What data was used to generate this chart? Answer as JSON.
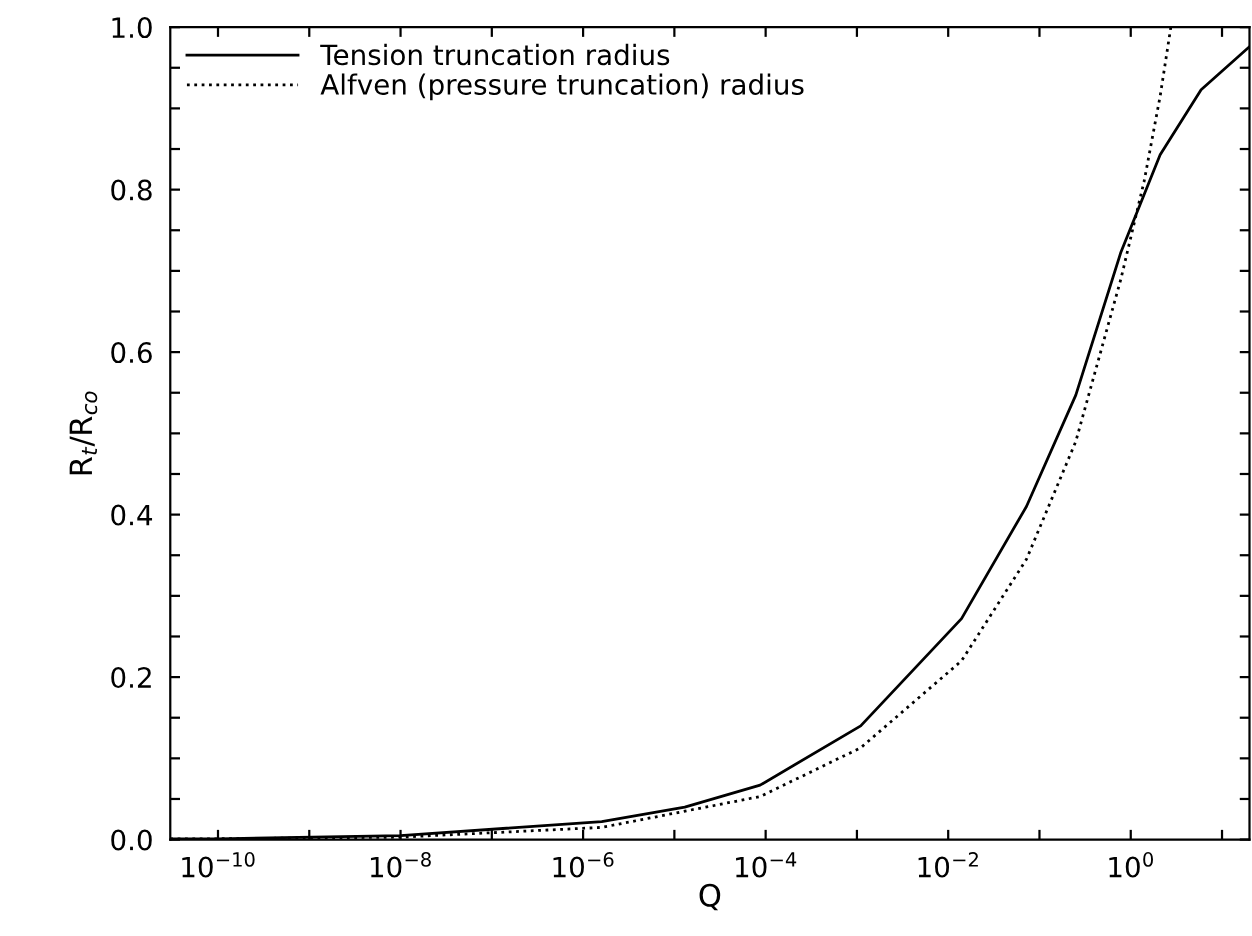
{
  "chart_data": {
    "type": "line",
    "xlabel": "Q",
    "ylabel": "R$_{t}$/R$_{co}$",
    "log": "x",
    "legend": "top left",
    "grid": false,
    "xlim": [
      3e-11,
      20
    ],
    "ylim": [
      0,
      1
    ],
    "xticks": [
      {
        "value": 1e-10,
        "label": "10$^{−10}$"
      },
      {
        "value": 1e-09,
        "label": null
      },
      {
        "value": 1e-08,
        "label": "10$^{−8}$"
      },
      {
        "value": 1e-07,
        "label": null
      },
      {
        "value": 1e-06,
        "label": "10$^{−6}$"
      },
      {
        "value": 1e-05,
        "label": null
      },
      {
        "value": 0.0001,
        "label": "10$^{−4}$"
      },
      {
        "value": 0.001,
        "label": null
      },
      {
        "value": 0.01,
        "label": "10$^{−2}$"
      },
      {
        "value": 0.1,
        "label": null
      },
      {
        "value": 1,
        "label": "10$^{0}$"
      },
      {
        "value": 10,
        "label": null
      }
    ],
    "yticks": [
      {
        "value": 0,
        "label": "0.0"
      },
      {
        "value": 0.05,
        "label": null
      },
      {
        "value": 0.1,
        "label": null
      },
      {
        "value": 0.15,
        "label": null
      },
      {
        "value": 0.2,
        "label": "0.2"
      },
      {
        "value": 0.25,
        "label": null
      },
      {
        "value": 0.3,
        "label": null
      },
      {
        "value": 0.35,
        "label": null
      },
      {
        "value": 0.4,
        "label": "0.4"
      },
      {
        "value": 0.45,
        "label": null
      },
      {
        "value": 0.5,
        "label": null
      },
      {
        "value": 0.55,
        "label": null
      },
      {
        "value": 0.6,
        "label": "0.6"
      },
      {
        "value": 0.65,
        "label": null
      },
      {
        "value": 0.7,
        "label": null
      },
      {
        "value": 0.75,
        "label": null
      },
      {
        "value": 0.8,
        "label": "0.8"
      },
      {
        "value": 0.85,
        "label": null
      },
      {
        "value": 0.9,
        "label": null
      },
      {
        "value": 0.95,
        "label": null
      },
      {
        "value": 1,
        "label": "1.0"
      }
    ],
    "series": [
      {
        "name": "Tension truncation radius",
        "color": "#000000",
        "line_style": "solid",
        "x": [
          3e-11,
          1e-10,
          1e-08,
          1.6e-06,
          1.3e-05,
          8.7e-05,
          0.0011,
          0.014,
          0.072,
          0.25,
          0.78,
          2.1,
          5.9,
          20
        ],
        "values": [
          0.001,
          0.001,
          0.005,
          0.022,
          0.04,
          0.067,
          0.14,
          0.272,
          0.41,
          0.547,
          0.723,
          0.843,
          0.923,
          0.976
        ]
      },
      {
        "name": "Alfven (pressure truncation) radius",
        "color": "#000000",
        "line_style": "dotted",
        "x": [
          3e-11,
          1e-10,
          1e-08,
          1.6e-06,
          8.7e-05,
          0.0011,
          0.014,
          0.072,
          0.25,
          0.78,
          1.4,
          2.1,
          2.75
        ],
        "values": [
          0.001,
          0.001,
          0.003,
          0.015,
          0.053,
          0.113,
          0.22,
          0.345,
          0.49,
          0.69,
          0.81,
          0.915,
          1.0
        ]
      }
    ]
  }
}
